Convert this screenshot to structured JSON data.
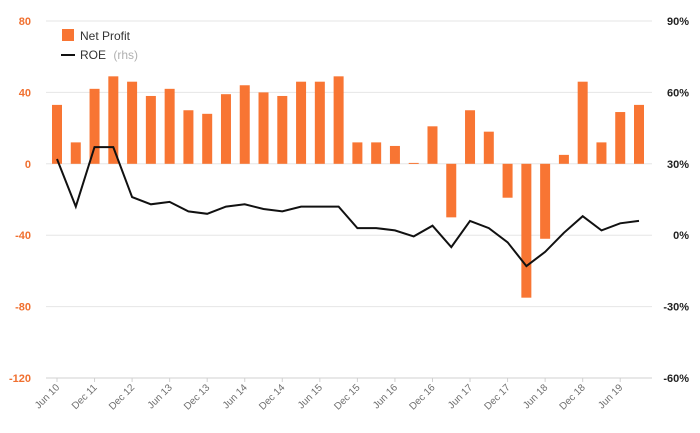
{
  "chart_data": {
    "type": "bar+line",
    "title": "",
    "xlabel": "",
    "ylabel_left": "",
    "ylabel_right": "",
    "left_axis": {
      "ylim": [
        -120,
        80
      ],
      "ticks": [
        80,
        40,
        0,
        -40,
        -80,
        -120
      ],
      "tick_labels": [
        "80",
        "40",
        "0",
        "-40",
        "-80",
        "-120"
      ]
    },
    "right_axis": {
      "ylim": [
        -60,
        90
      ],
      "ticks": [
        90,
        60,
        30,
        0,
        -30,
        -60
      ],
      "tick_labels": [
        "90%",
        "60%",
        "30%",
        "0%",
        "-30%",
        "-60%"
      ]
    },
    "x_tick_labels": [
      "Jun 10",
      "Dec 11",
      "Dec 12",
      "Jun 13",
      "Dec 13",
      "Jun 14",
      "Dec 14",
      "Jun 15",
      "Dec 15",
      "Jun 16",
      "Dec 16",
      "Jun 17",
      "Dec 17",
      "Jun 18",
      "Dec 18",
      "Jun 19"
    ],
    "periods": 32,
    "series": [
      {
        "name": "Net Profit",
        "type": "bar",
        "axis": "left",
        "color": "#f87533",
        "values": [
          33,
          12,
          42,
          49,
          46,
          38,
          42,
          30,
          28,
          39,
          44,
          40,
          38,
          46,
          46,
          49,
          12,
          12,
          10,
          0.5,
          21,
          -30,
          30,
          18,
          -19,
          -75,
          -42,
          5,
          46,
          12,
          29,
          33
        ]
      },
      {
        "name": "ROE",
        "type": "line",
        "axis": "right",
        "color": "#111111",
        "values": [
          32,
          12,
          37,
          37,
          16,
          13,
          14,
          10,
          9,
          12,
          13,
          11,
          10,
          12,
          12,
          12,
          3,
          3,
          2,
          -0.5,
          4,
          -5,
          6,
          3,
          -3,
          -13,
          -7,
          1,
          8,
          2,
          5,
          6
        ]
      }
    ],
    "legend": {
      "position": "top-left",
      "items": [
        {
          "label": "Net Profit"
        },
        {
          "label": "ROE",
          "suffix": "(rhs)"
        }
      ]
    },
    "grid": true
  }
}
